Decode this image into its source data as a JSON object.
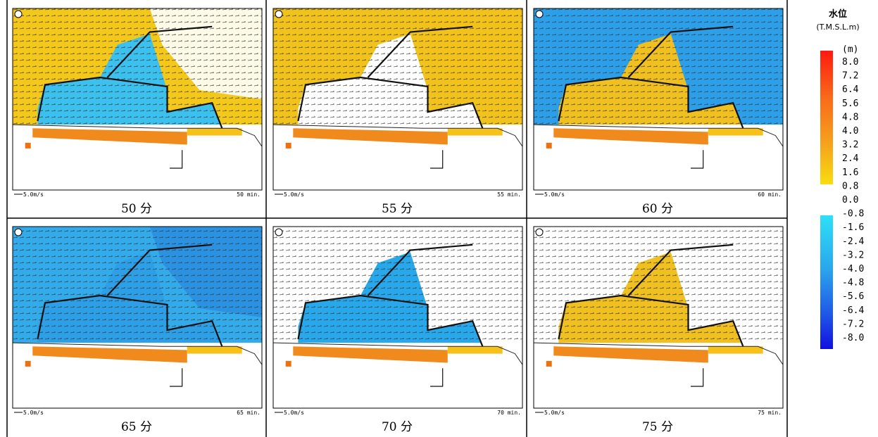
{
  "panels": [
    {
      "caption": "50 分",
      "scale_label": "5.0m/s",
      "time_label": "50 min."
    },
    {
      "caption": "55 分",
      "scale_label": "5.0m/s",
      "time_label": "55 min."
    },
    {
      "caption": "60 分",
      "scale_label": "5.0m/s",
      "time_label": "60 min."
    },
    {
      "caption": "65 分",
      "scale_label": "5.0m/s",
      "time_label": "65 min."
    },
    {
      "caption": "70 分",
      "scale_label": "5.0m/s",
      "time_label": "70 min."
    },
    {
      "caption": "75 分",
      "scale_label": "5.0m/s",
      "time_label": "75 min."
    }
  ],
  "legend": {
    "title": "水位",
    "unit": "(T.M.S.L.m)",
    "subunit": "(m)",
    "labels": [
      "8.0",
      "7.2",
      "6.4",
      "5.6",
      "4.8",
      "4.0",
      "3.2",
      "2.4",
      "1.6",
      "0.8",
      "0.0",
      "-0.8",
      "-1.6",
      "-2.4",
      "-3.2",
      "-4.0",
      "-4.8",
      "-5.6",
      "-6.4",
      "-7.2",
      "-8.0"
    ]
  }
}
